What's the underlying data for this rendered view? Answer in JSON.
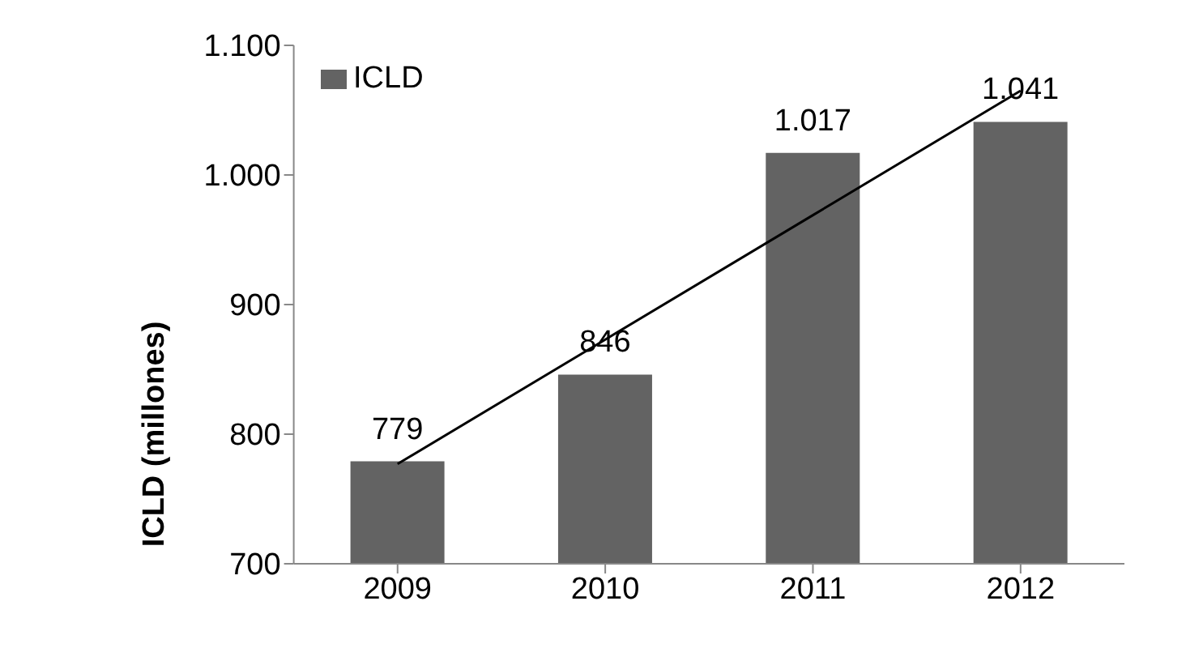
{
  "chart_data": {
    "type": "bar",
    "ylabel": "ICLD (millones)",
    "categories": [
      "2009",
      "2010",
      "2011",
      "2012"
    ],
    "series": [
      {
        "name": "ICLD",
        "color": "#636363",
        "values": [
          779,
          846,
          1017,
          1041
        ],
        "value_labels": [
          "779",
          "846",
          "1.017",
          "1.041"
        ]
      },
      {
        "type": "line",
        "color": "#000000",
        "values": [
          777,
          873,
          969,
          1065
        ]
      }
    ],
    "ylim": [
      700,
      1100
    ],
    "yticks": [
      700,
      800,
      900,
      {
        "value": 1000,
        "label": "1.000"
      },
      {
        "value": 1100,
        "label": "1.100"
      }
    ],
    "grid": false,
    "legend": "top left"
  }
}
